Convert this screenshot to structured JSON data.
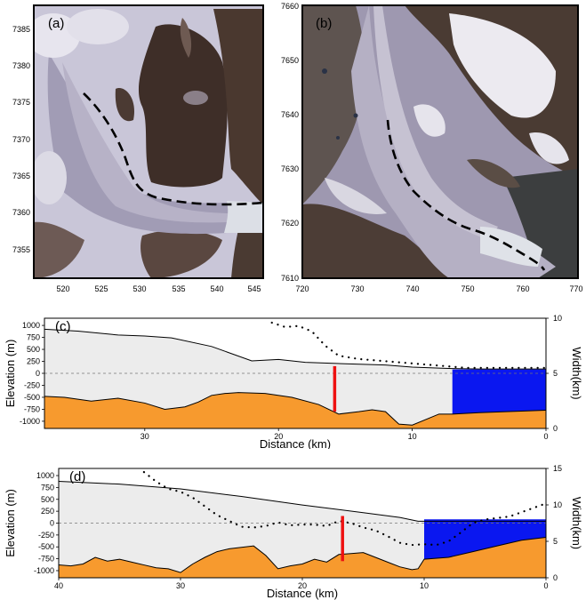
{
  "panel_a": {
    "label": "(a)",
    "x_ticks": [
      "520",
      "525",
      "530",
      "535",
      "540",
      "545"
    ],
    "y_ticks": [
      "7385",
      "7380",
      "7375",
      "7370",
      "7365",
      "7360",
      "7355"
    ]
  },
  "panel_b": {
    "label": "(b)",
    "x_ticks": [
      "720",
      "730",
      "740",
      "750",
      "760",
      "770"
    ],
    "y_ticks": [
      "7660",
      "7650",
      "7640",
      "7630",
      "7620",
      "7610"
    ]
  },
  "chart_data": [
    {
      "type": "area",
      "label": "(c)",
      "xlabel": "Distance (km)",
      "ylabel": "Elevation (m)",
      "y2label": "Width(km)",
      "xlim": [
        37.5,
        0
      ],
      "ylim": [
        -1150,
        1150
      ],
      "y2lim": [
        0,
        10
      ],
      "x_ticks": [
        30,
        20,
        10,
        0
      ],
      "y_ticks": [
        1000,
        750,
        500,
        250,
        0,
        -250,
        -500,
        -750,
        -1000
      ],
      "y2_ticks": [
        0,
        5,
        10
      ],
      "surface": {
        "x": [
          37.5,
          35,
          32,
          30,
          28,
          25,
          22,
          20,
          18,
          15,
          12,
          10,
          8,
          7,
          5,
          0
        ],
        "y": [
          920,
          880,
          800,
          780,
          740,
          560,
          260,
          290,
          230,
          200,
          175,
          130,
          110,
          100,
          90,
          90
        ]
      },
      "bed": {
        "x": [
          37.5,
          36,
          34,
          32,
          30,
          28.5,
          27,
          26,
          25,
          24,
          23,
          21,
          19,
          17,
          15.5,
          14,
          13,
          12,
          11,
          10,
          8,
          7,
          5,
          3,
          0
        ],
        "y": [
          -480,
          -500,
          -580,
          -520,
          -620,
          -750,
          -700,
          -600,
          -460,
          -420,
          -400,
          -420,
          -500,
          -650,
          -850,
          -800,
          -760,
          -800,
          -1060,
          -1080,
          -850,
          -850,
          -820,
          -800,
          -770
        ]
      },
      "water_extent": [
        7,
        0
      ],
      "width": {
        "x": [
          20.5,
          19.5,
          18.5,
          17.5,
          16.5,
          15.5,
          14,
          12,
          10,
          8,
          6,
          4,
          2,
          0
        ],
        "y": [
          9.6,
          9.2,
          9.3,
          8.8,
          7.5,
          6.6,
          6.3,
          6.1,
          5.9,
          5.7,
          5.5,
          5.5,
          5.5,
          5.5
        ]
      },
      "marker_x": 15.8
    },
    {
      "type": "area",
      "label": "(d)",
      "xlabel": "Distance (km)",
      "ylabel": "Elevation (m)",
      "y2label": "Width(km)",
      "xlim": [
        40,
        0
      ],
      "ylim": [
        -1150,
        1150
      ],
      "y2lim": [
        0,
        15
      ],
      "x_ticks": [
        40,
        30,
        20,
        10,
        0
      ],
      "y_ticks": [
        1000,
        750,
        500,
        250,
        0,
        -250,
        -500,
        -750,
        -1000
      ],
      "y2_ticks": [
        0,
        5,
        10,
        15
      ],
      "surface": {
        "x": [
          40,
          35,
          30,
          25,
          20,
          15,
          12,
          10.5,
          10,
          7,
          5,
          0
        ],
        "y": [
          880,
          820,
          720,
          560,
          380,
          220,
          120,
          40,
          40,
          40,
          40,
          40
        ]
      },
      "bed": {
        "x": [
          40,
          39,
          38,
          37,
          36,
          35,
          34,
          33,
          32,
          31,
          30,
          29,
          28,
          27,
          26,
          24,
          23,
          22,
          21,
          20,
          19,
          18,
          17,
          16,
          15,
          14,
          13,
          12,
          11,
          10.5,
          10,
          8,
          6,
          4,
          2,
          0
        ],
        "y": [
          -880,
          -900,
          -860,
          -720,
          -800,
          -760,
          -820,
          -880,
          -940,
          -960,
          -1040,
          -860,
          -720,
          -600,
          -540,
          -480,
          -680,
          -960,
          -900,
          -860,
          -760,
          -820,
          -660,
          -640,
          -620,
          -720,
          -820,
          -920,
          -980,
          -960,
          -760,
          -720,
          -600,
          -480,
          -360,
          -300
        ]
      },
      "water_extent": [
        10,
        0
      ],
      "width": {
        "x": [
          33,
          32,
          31,
          30,
          29,
          28,
          27,
          26,
          25,
          24,
          23,
          22,
          21,
          20,
          19,
          18,
          17,
          16,
          15,
          14,
          13,
          12,
          11,
          10,
          9,
          8,
          7,
          6,
          5,
          4,
          3,
          2,
          1,
          0
        ],
        "y": [
          14.5,
          13.2,
          12.2,
          11.8,
          11.0,
          9.8,
          8.6,
          7.8,
          7.0,
          6.9,
          7.1,
          7.6,
          7.2,
          7.3,
          7.3,
          7.1,
          7.8,
          7.5,
          6.9,
          6.5,
          5.7,
          4.8,
          4.5,
          4.6,
          4.5,
          5.0,
          6.2,
          7.5,
          8.0,
          8.2,
          8.4,
          9.0,
          9.6,
          10.2
        ]
      },
      "marker_x": 16.7
    }
  ]
}
